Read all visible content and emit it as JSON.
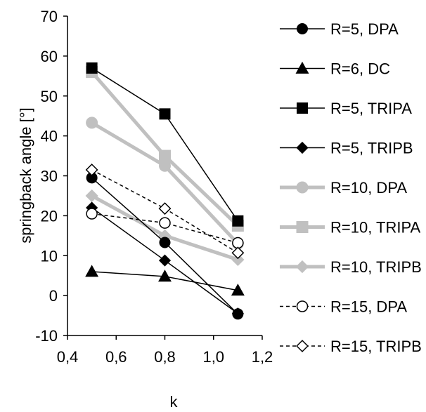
{
  "chart_data": {
    "type": "line",
    "xlabel": "k",
    "ylabel": "springback angle [°]",
    "xlim": [
      0.4,
      1.2
    ],
    "ylim": [
      -10,
      70
    ],
    "x_ticks": [
      "0,4",
      "0,6",
      "0,8",
      "1,0",
      "1,2"
    ],
    "y_ticks": [
      "-10",
      "0",
      "10",
      "20",
      "30",
      "40",
      "50",
      "60",
      "70"
    ],
    "grid": false,
    "legend_position": "right",
    "x": [
      0.5,
      0.8,
      1.1
    ],
    "series": [
      {
        "name": "R=5, DPA",
        "values": [
          29.5,
          13.3,
          -4.6
        ],
        "color": "#000000",
        "marker": "circle",
        "fill": "filled",
        "line": "solid",
        "weight": "thin"
      },
      {
        "name": "R=6, DC",
        "values": [
          6.0,
          4.8,
          1.3
        ],
        "color": "#000000",
        "marker": "triangle",
        "fill": "filled",
        "line": "solid",
        "weight": "thin"
      },
      {
        "name": "R=5, TRIPA",
        "values": [
          57.0,
          45.5,
          18.7
        ],
        "color": "#000000",
        "marker": "square",
        "fill": "filled",
        "line": "solid",
        "weight": "thin"
      },
      {
        "name": "R=5, TRIPB",
        "values": [
          22.0,
          8.8,
          -4.5
        ],
        "color": "#000000",
        "marker": "diamond",
        "fill": "filled",
        "line": "solid",
        "weight": "thin"
      },
      {
        "name": "R=10, DPA",
        "values": [
          43.3,
          32.5,
          13.0
        ],
        "color": "#c0c0c0",
        "marker": "circle",
        "fill": "filled",
        "line": "solid",
        "weight": "thick"
      },
      {
        "name": "R=10, TRIPA",
        "values": [
          56.0,
          35.0,
          17.5
        ],
        "color": "#c0c0c0",
        "marker": "square",
        "fill": "filled",
        "line": "solid",
        "weight": "thick"
      },
      {
        "name": "R=10, TRIPB",
        "values": [
          25.0,
          15.0,
          9.0
        ],
        "color": "#c0c0c0",
        "marker": "diamond",
        "fill": "filled",
        "line": "solid",
        "weight": "thick"
      },
      {
        "name": "R=15, DPA",
        "values": [
          20.5,
          18.2,
          13.2
        ],
        "color": "#000000",
        "marker": "circle",
        "fill": "open",
        "line": "dashed",
        "weight": "thin"
      },
      {
        "name": "R=15, TRIPB",
        "values": [
          31.5,
          21.8,
          10.7
        ],
        "color": "#000000",
        "marker": "diamond",
        "fill": "open",
        "line": "dashed",
        "weight": "thin"
      }
    ]
  }
}
